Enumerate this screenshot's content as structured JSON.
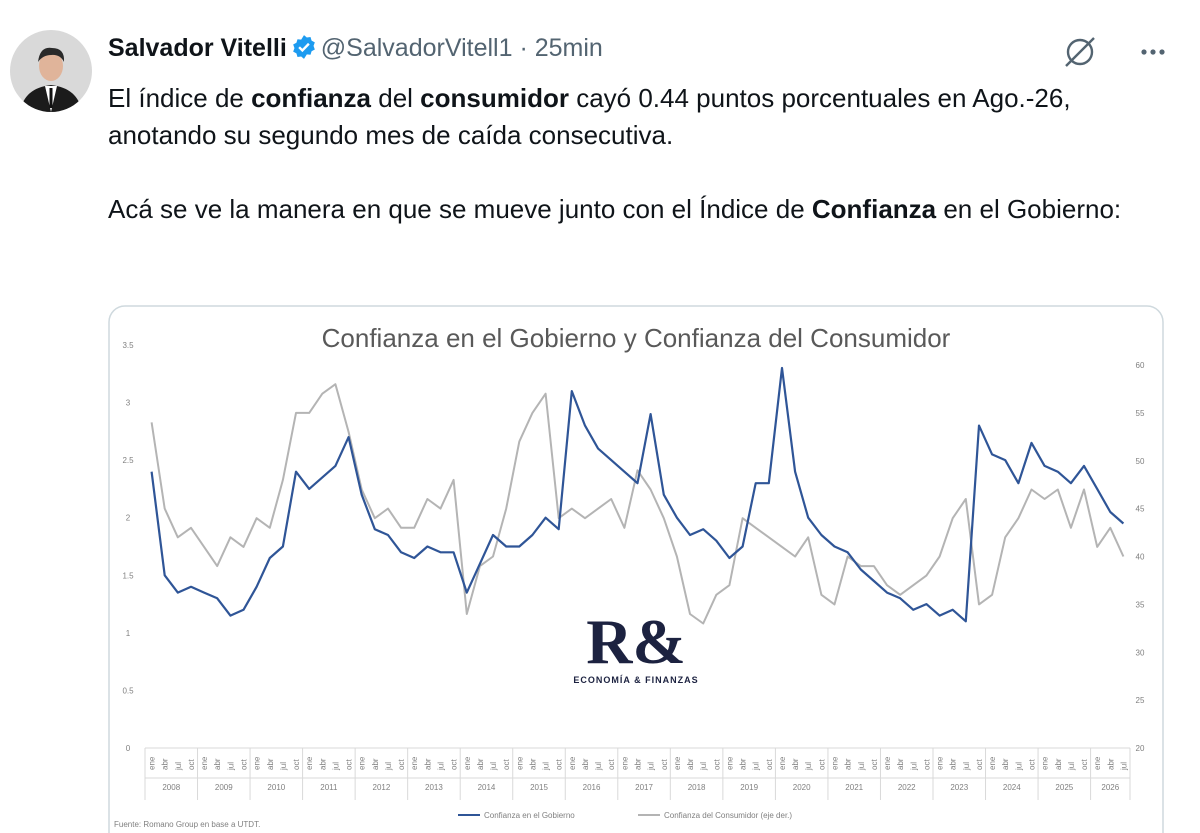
{
  "tweet": {
    "name": "Salvador Vitelli",
    "handle": "@SalvadorVitell1",
    "separator": "·",
    "time": "25min",
    "paragraphs": [
      [
        {
          "text": "El índice de "
        },
        {
          "text": "confianza",
          "bold": true
        },
        {
          "text": " del "
        },
        {
          "text": "consumidor",
          "bold": true
        },
        {
          "text": " cayó 0.44 puntos porcentuales en Ago.-26, anotando su segundo mes de caída consecutiva."
        }
      ],
      [
        {
          "text": "Acá se ve la manera en que se mueve junto con el Índice de "
        },
        {
          "text": "Confianza",
          "bold": true
        },
        {
          "text": " en el Gobierno:"
        }
      ]
    ]
  },
  "chart_data": {
    "type": "line",
    "title": "Confianza en el Gobierno y Confianza del Consumidor",
    "categories": [
      "ene",
      "abr",
      "jul",
      "oct",
      "ene",
      "abr",
      "jul",
      "oct",
      "ene",
      "abr",
      "jul",
      "oct",
      "ene",
      "abr",
      "jul",
      "oct",
      "ene",
      "abr",
      "jul",
      "oct",
      "ene",
      "abr",
      "jul",
      "oct",
      "ene",
      "abr",
      "jul",
      "oct",
      "ene",
      "abr",
      "jul",
      "oct",
      "ene",
      "abr",
      "jul",
      "oct",
      "ene",
      "abr",
      "jul",
      "oct",
      "ene",
      "abr",
      "jul",
      "oct",
      "ene",
      "abr",
      "jul",
      "oct",
      "ene",
      "abr",
      "jul",
      "oct",
      "ene",
      "abr",
      "jul",
      "oct",
      "ene",
      "abr",
      "jul",
      "oct",
      "ene",
      "abr",
      "jul",
      "oct",
      "ene",
      "abr",
      "jul",
      "oct",
      "ene",
      "abr",
      "jul",
      "oct",
      "ene",
      "abr",
      "jul"
    ],
    "years": [
      "2008",
      "2009",
      "2010",
      "2011",
      "2012",
      "2013",
      "2014",
      "2015",
      "2016",
      "2017",
      "2018",
      "2019",
      "2020",
      "2021",
      "2022",
      "2023",
      "2024",
      "2025",
      "2026"
    ],
    "series": [
      {
        "name": "Confianza en el Gobierno",
        "color": "#2f5597",
        "values": [
          2.4,
          1.5,
          1.35,
          1.4,
          1.35,
          1.3,
          1.15,
          1.2,
          1.4,
          1.65,
          1.75,
          2.4,
          2.25,
          2.35,
          2.45,
          2.7,
          2.2,
          1.9,
          1.85,
          1.7,
          1.65,
          1.75,
          1.7,
          1.7,
          1.35,
          1.6,
          1.85,
          1.75,
          1.75,
          1.85,
          2.0,
          1.9,
          3.1,
          2.8,
          2.6,
          2.5,
          2.4,
          2.3,
          2.9,
          2.2,
          2.0,
          1.85,
          1.9,
          1.8,
          1.65,
          1.75,
          2.3,
          2.3,
          3.3,
          2.4,
          2.0,
          1.85,
          1.75,
          1.7,
          1.55,
          1.45,
          1.35,
          1.3,
          1.2,
          1.25,
          1.15,
          1.2,
          1.1,
          2.8,
          2.55,
          2.5,
          2.3,
          2.65,
          2.45,
          2.4,
          2.3,
          2.45,
          2.25,
          2.05,
          1.95
        ]
      },
      {
        "name": "Confianza del Consumidor (eje der.)",
        "color": "#b4b4b4",
        "axis": "y2",
        "values": [
          54,
          45,
          42,
          43,
          41,
          39,
          42,
          41,
          44,
          43,
          48,
          55,
          55,
          57,
          58,
          53,
          47,
          44,
          45,
          43,
          43,
          46,
          45,
          48,
          34,
          39,
          40,
          45,
          52,
          55,
          57,
          44,
          45,
          44,
          45,
          46,
          43,
          49,
          47,
          44,
          40,
          34,
          33,
          36,
          37,
          44,
          43,
          42,
          41,
          40,
          42,
          36,
          35,
          40,
          39,
          39,
          37,
          36,
          37,
          38,
          40,
          44,
          46,
          35,
          36,
          42,
          44,
          47,
          46,
          47,
          43,
          47,
          41,
          43,
          40
        ]
      }
    ],
    "ylim": [
      0,
      3.5
    ],
    "yticks": [
      0,
      0.5,
      1,
      1.5,
      2,
      2.5,
      3,
      3.5
    ],
    "y2lim": [
      20,
      60
    ],
    "y2ticks": [
      20,
      25,
      30,
      35,
      40,
      45,
      50,
      55,
      60
    ],
    "logo": "R&",
    "logo_subtitle": "ECONOMÍA & FINANZAS",
    "source": "Fuente: Romano Group en base a UTDT."
  }
}
